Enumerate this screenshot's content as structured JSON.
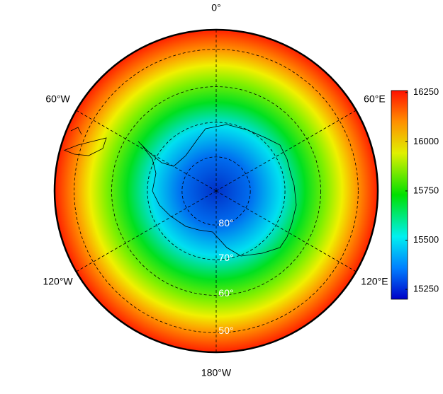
{
  "map": {
    "projection": "south polar stereographic",
    "lat_limit": 45,
    "meridians": [
      {
        "value": 0,
        "label": "0°"
      },
      {
        "value": 60,
        "label": "60°E"
      },
      {
        "value": 120,
        "label": "120°E"
      },
      {
        "value": 180,
        "label": "180°W"
      },
      {
        "value": 240,
        "label": "120°W"
      },
      {
        "value": 300,
        "label": "60°W"
      }
    ],
    "parallels": [
      {
        "value": 80,
        "label": "80°"
      },
      {
        "value": 70,
        "label": "70°"
      },
      {
        "value": 60,
        "label": "60°"
      },
      {
        "value": 50,
        "label": "50°"
      }
    ],
    "colorbar": {
      "lim": [
        15200,
        16260
      ],
      "ticks": [
        15250,
        15500,
        15750,
        16000,
        16250
      ]
    }
  }
}
